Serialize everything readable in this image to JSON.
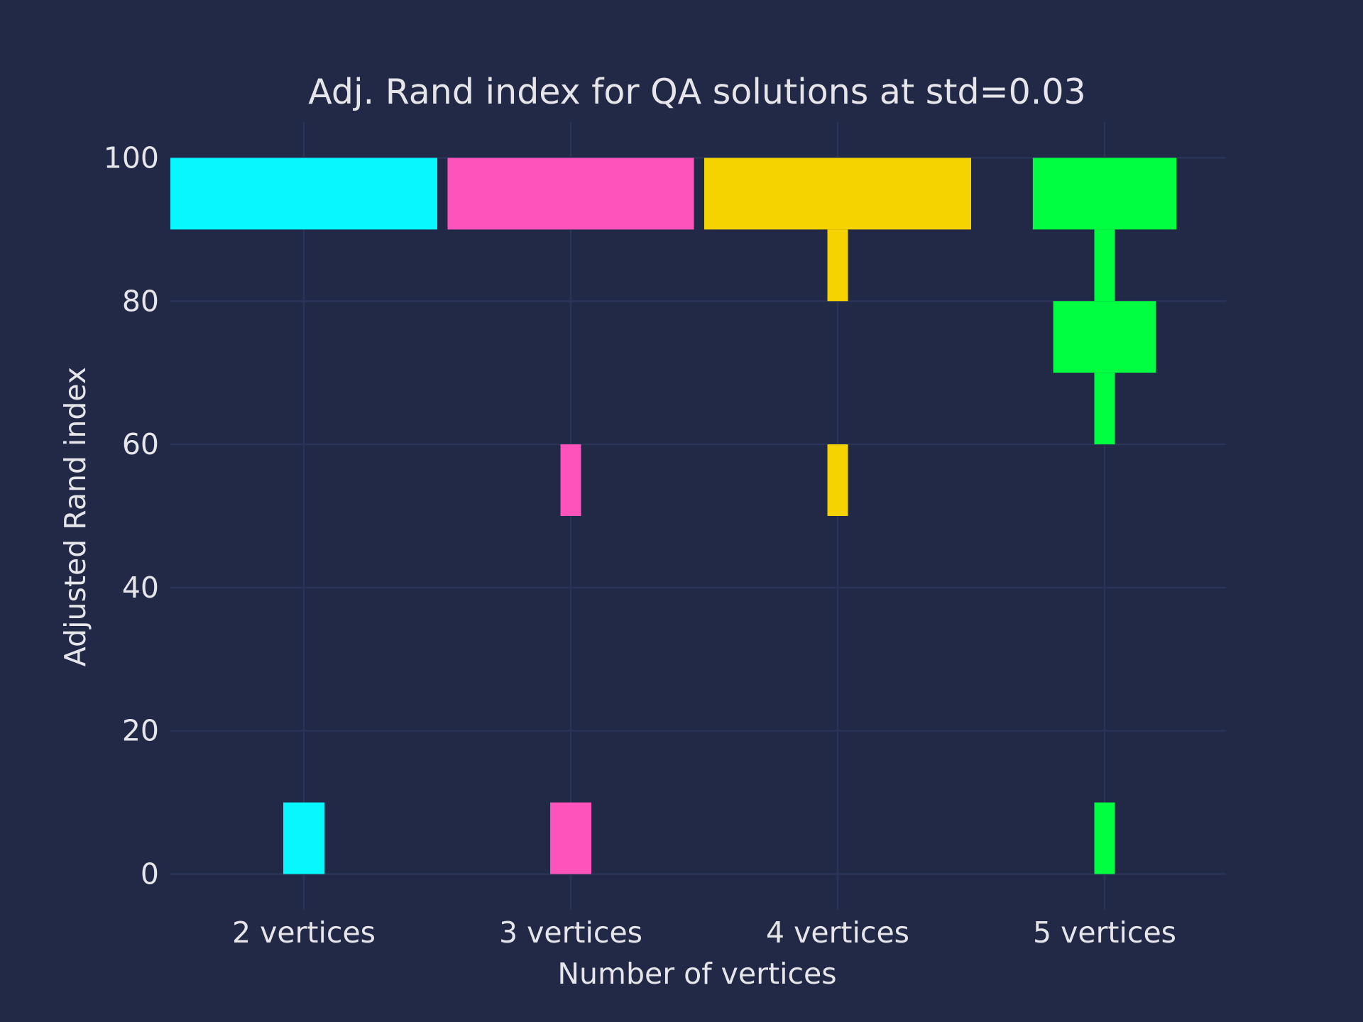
{
  "chart_data": {
    "type": "bar",
    "title": "Adj. Rand index for QA solutions at std=0.03",
    "xlabel": "Number of vertices",
    "ylabel": "Adjusted Rand index",
    "ylim": [
      -5,
      105
    ],
    "y_ticks": [
      0,
      20,
      40,
      60,
      80,
      100
    ],
    "y_tick_labels": [
      "0",
      "20",
      "40",
      "60",
      "80",
      "100"
    ],
    "grid": true,
    "legend": "none",
    "categories": [
      "2 vertices",
      "3 vertices",
      "4 vertices",
      "5 vertices"
    ],
    "bin_edges": [
      0,
      10,
      20,
      30,
      40,
      50,
      60,
      70,
      80,
      90,
      100
    ],
    "series": [
      {
        "category": "2 vertices",
        "color": "#08F7FE",
        "widths": [
          0.154,
          0,
          0,
          0,
          0,
          0,
          0,
          0,
          0,
          1.0
        ]
      },
      {
        "category": "3 vertices",
        "color": "#FE53BB",
        "widths": [
          0.154,
          0,
          0,
          0,
          0,
          0.077,
          0,
          0,
          0,
          0.923
        ]
      },
      {
        "category": "4 vertices",
        "color": "#F5D300",
        "widths": [
          0,
          0,
          0,
          0,
          0,
          0.077,
          0,
          0,
          0.077,
          1.0
        ]
      },
      {
        "category": "5 vertices",
        "color": "#00FF41",
        "widths": [
          0.077,
          0,
          0,
          0,
          0,
          0,
          0.077,
          0.385,
          0.077,
          0.538
        ]
      }
    ]
  }
}
